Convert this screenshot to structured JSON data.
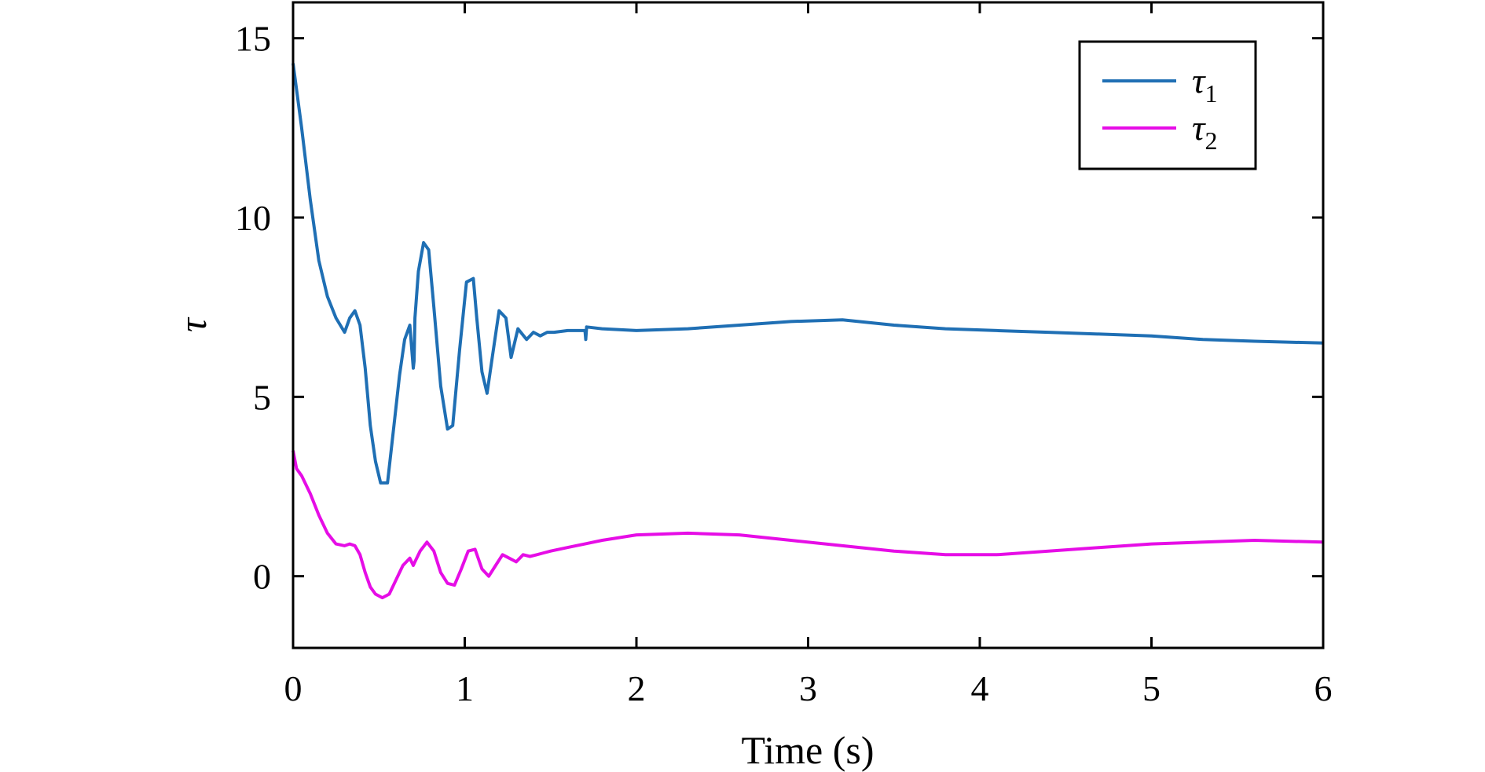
{
  "chart_data": {
    "type": "line",
    "xlabel": "Time (s)",
    "ylabel": "τ",
    "xlim": [
      0,
      6
    ],
    "ylim": [
      -2,
      16
    ],
    "xticks": [
      0,
      1,
      2,
      3,
      4,
      5,
      6
    ],
    "yticks": [
      0,
      5,
      10,
      15
    ],
    "grid": false,
    "legend_position": "top-right",
    "series": [
      {
        "name": "τ1",
        "label_base": "τ",
        "label_sub": "1",
        "color": "#1f6fb4",
        "x": [
          0,
          0.05,
          0.1,
          0.15,
          0.2,
          0.25,
          0.3,
          0.33,
          0.36,
          0.39,
          0.42,
          0.45,
          0.48,
          0.51,
          0.55,
          0.59,
          0.62,
          0.65,
          0.68,
          0.7,
          0.705,
          0.71,
          0.73,
          0.76,
          0.79,
          0.82,
          0.86,
          0.9,
          0.93,
          0.97,
          1.01,
          1.05,
          1.07,
          1.1,
          1.13,
          1.16,
          1.2,
          1.24,
          1.27,
          1.31,
          1.36,
          1.4,
          1.44,
          1.48,
          1.52,
          1.6,
          1.7,
          1.705,
          1.71,
          1.8,
          2.0,
          2.3,
          2.6,
          2.9,
          3.2,
          3.5,
          3.8,
          4.1,
          4.4,
          4.7,
          5.0,
          5.3,
          5.6,
          6.0
        ],
        "values": [
          14.3,
          12.5,
          10.5,
          8.8,
          7.8,
          7.2,
          6.8,
          7.2,
          7.4,
          7.0,
          5.8,
          4.2,
          3.2,
          2.6,
          2.6,
          4.3,
          5.6,
          6.6,
          7.0,
          5.8,
          6.0,
          7.2,
          8.5,
          9.3,
          9.1,
          7.5,
          5.3,
          4.1,
          4.2,
          6.3,
          8.2,
          8.3,
          7.2,
          5.7,
          5.1,
          6.1,
          7.4,
          7.2,
          6.1,
          6.9,
          6.6,
          6.8,
          6.7,
          6.8,
          6.8,
          6.85,
          6.85,
          6.6,
          6.95,
          6.9,
          6.85,
          6.9,
          7.0,
          7.1,
          7.15,
          7.0,
          6.9,
          6.85,
          6.8,
          6.75,
          6.7,
          6.6,
          6.55,
          6.5
        ]
      },
      {
        "name": "τ2",
        "label_base": "τ",
        "label_sub": "2",
        "color": "#e60de6",
        "x": [
          0,
          0.02,
          0.05,
          0.1,
          0.15,
          0.2,
          0.25,
          0.3,
          0.33,
          0.36,
          0.39,
          0.42,
          0.45,
          0.48,
          0.52,
          0.56,
          0.6,
          0.64,
          0.68,
          0.7,
          0.705,
          0.71,
          0.74,
          0.78,
          0.82,
          0.86,
          0.9,
          0.94,
          0.98,
          1.02,
          1.06,
          1.1,
          1.14,
          1.18,
          1.22,
          1.26,
          1.3,
          1.34,
          1.38,
          1.42,
          1.46,
          1.5,
          1.6,
          1.7,
          1.8,
          2.0,
          2.3,
          2.6,
          2.9,
          3.2,
          3.5,
          3.8,
          4.1,
          4.4,
          4.7,
          5.0,
          5.3,
          5.6,
          6.0
        ],
        "values": [
          3.5,
          3.0,
          2.8,
          2.3,
          1.7,
          1.2,
          0.9,
          0.85,
          0.9,
          0.85,
          0.6,
          0.1,
          -0.3,
          -0.5,
          -0.6,
          -0.5,
          -0.1,
          0.3,
          0.5,
          0.3,
          0.35,
          0.4,
          0.7,
          0.95,
          0.7,
          0.1,
          -0.2,
          -0.25,
          0.2,
          0.7,
          0.75,
          0.2,
          0.0,
          0.3,
          0.6,
          0.5,
          0.4,
          0.6,
          0.55,
          0.6,
          0.65,
          0.7,
          0.8,
          0.9,
          1.0,
          1.15,
          1.2,
          1.15,
          1.0,
          0.85,
          0.7,
          0.6,
          0.6,
          0.7,
          0.8,
          0.9,
          0.95,
          1.0,
          0.95
        ]
      }
    ]
  }
}
